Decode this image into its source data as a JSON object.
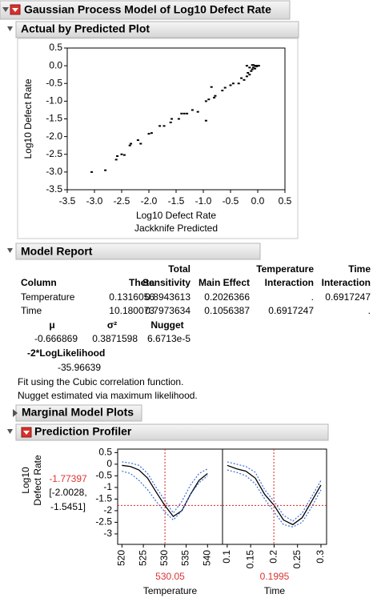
{
  "report_title": "Gaussian Process Model of Log10 Defect Rate",
  "chart_data": [
    {
      "type": "scatter",
      "title": "Actual by Predicted Plot",
      "xlabel": "Log10 Defect Rate",
      "xlabel2": "Jackknife Predicted",
      "ylabel": "Log10 Defect Rate",
      "color": "#000000",
      "xlim": [
        -3.5,
        0.5
      ],
      "ylim": [
        -3.5,
        0.5
      ],
      "xticks": [
        -3.5,
        {
          "value": -3,
          "label": "-3.0"
        },
        -2.5,
        {
          "value": -2,
          "label": "-2.0"
        },
        -1.5,
        {
          "value": -1,
          "label": "-1.0"
        },
        -0.5,
        {
          "value": 0,
          "label": "0.0"
        },
        0.5
      ],
      "yticks": [
        -3.5,
        {
          "value": -3,
          "label": "-3.0"
        },
        -2.5,
        {
          "value": -2,
          "label": "-2.0"
        },
        -1.5,
        {
          "value": -1,
          "label": "-1.0"
        },
        -0.5,
        {
          "value": 0,
          "label": "0.0"
        },
        0.5
      ],
      "x": [
        -3.05,
        -2.8,
        -2.6,
        -2.58,
        -2.5,
        -2.45,
        -2.35,
        -2.33,
        -2.2,
        -2.15,
        -2.0,
        -1.95,
        -1.8,
        -1.72,
        -1.6,
        -1.58,
        -1.45,
        -1.4,
        -1.35,
        -1.3,
        -1.2,
        -1.1,
        -0.95,
        -0.95,
        -0.9,
        -0.8,
        -0.78,
        -0.85,
        -0.65,
        -0.6,
        -0.5,
        -0.45,
        -0.35,
        -0.3,
        -0.25,
        -0.2,
        -0.18,
        -0.15,
        -0.12,
        -0.1,
        -0.1,
        -0.08,
        -0.05,
        -0.05,
        -0.03,
        -0.02,
        0.0,
        0.02,
        -0.2,
        -0.15,
        -0.08
      ],
      "values": [
        -3.0,
        -2.95,
        -2.65,
        -2.55,
        -2.5,
        -2.52,
        -2.25,
        -2.2,
        -2.1,
        -2.2,
        -1.92,
        -1.9,
        -1.7,
        -1.7,
        -1.6,
        -1.5,
        -1.5,
        -1.35,
        -1.35,
        -1.35,
        -1.25,
        -1.3,
        -1.55,
        -1.0,
        -0.95,
        -0.9,
        -0.85,
        -0.6,
        -0.7,
        -0.62,
        -0.55,
        -0.5,
        -0.5,
        -0.35,
        -0.4,
        -0.3,
        -0.2,
        -0.25,
        -0.15,
        -0.1,
        0.02,
        -0.05,
        0.0,
        -0.08,
        0.0,
        -0.02,
        0.0,
        0.0,
        0.0,
        -0.05,
        0.02
      ]
    },
    {
      "type": "line",
      "xlabel": "Temperature",
      "x_current": 530.05,
      "xlim": [
        519,
        543.5
      ],
      "ylim": [
        -3.45,
        0.65
      ],
      "xticks": [
        520,
        525,
        530,
        535,
        540
      ],
      "yticks": [
        0.5,
        0,
        -0.5,
        -1,
        -1.5,
        -2,
        -2.5,
        -3
      ],
      "x": [
        520,
        522,
        524,
        526,
        528,
        530,
        532,
        534,
        536,
        538,
        540
      ],
      "series": [
        {
          "color": "#000000",
          "style": "solid",
          "values": [
            -0.05,
            -0.1,
            -0.25,
            -0.6,
            -1.2,
            -1.77,
            -2.25,
            -2.0,
            -1.3,
            -0.7,
            -0.4
          ]
        },
        {
          "color": "#3b6fd8",
          "style": "dotted",
          "values": [
            0.1,
            0.05,
            -0.05,
            -0.4,
            -1.0,
            -1.55,
            -2.1,
            -1.6,
            -0.9,
            -0.4,
            -0.2
          ]
        },
        {
          "color": "#3b6fd8",
          "style": "dotted",
          "values": [
            -0.3,
            -0.4,
            -0.7,
            -1.1,
            -1.6,
            -2.05,
            -2.4,
            -2.0,
            -1.3,
            -0.8,
            -0.5
          ]
        }
      ]
    },
    {
      "type": "line",
      "xlabel": "Time",
      "x_current": 0.1995,
      "xlim": [
        0.09,
        0.312
      ],
      "ylim": [
        -3.45,
        0.65
      ],
      "xticks": [
        0.1,
        0.15,
        0.2,
        0.25,
        0.3
      ],
      "yticks": [
        0.5,
        0,
        -0.5,
        -1,
        -1.5,
        -2,
        -2.5,
        -3
      ],
      "x": [
        0.1,
        0.12,
        0.14,
        0.16,
        0.18,
        0.2,
        0.22,
        0.24,
        0.26,
        0.28,
        0.3
      ],
      "series": [
        {
          "color": "#000000",
          "style": "solid",
          "values": [
            -0.05,
            -0.2,
            -0.3,
            -0.6,
            -1.3,
            -1.77,
            -2.4,
            -2.6,
            -2.3,
            -1.6,
            -0.9
          ]
        },
        {
          "color": "#3b6fd8",
          "style": "dotted",
          "values": [
            0.1,
            0.0,
            -0.1,
            -0.35,
            -1.1,
            -1.6,
            -2.2,
            -2.45,
            -2.1,
            -1.4,
            -0.7
          ]
        },
        {
          "color": "#3b6fd8",
          "style": "dotted",
          "values": [
            -0.25,
            -0.35,
            -0.5,
            -0.85,
            -1.5,
            -2.05,
            -2.6,
            -2.7,
            -2.5,
            -1.85,
            -1.1
          ]
        }
      ]
    }
  ],
  "model_report": {
    "heading": "Model Report",
    "columns": [
      [
        "Column"
      ],
      [
        "Theta"
      ],
      [
        "Total",
        "Sensitivity"
      ],
      [
        "Main Effect"
      ],
      [
        "Temperature",
        "Interaction"
      ],
      [
        "Time",
        "Interaction"
      ]
    ],
    "rows": [
      [
        "Temperature",
        0.1316056,
        0.8943613,
        0.2026366,
        ".",
        0.6917247
      ],
      [
        "Time",
        10.180073,
        0.7973634,
        0.1056387,
        0.6917247,
        "."
      ]
    ],
    "param_columns": [
      "μ",
      "σ²",
      "Nugget"
    ],
    "param_values": [
      -0.666869,
      0.3871598,
      "6.6713e-5"
    ],
    "loglik_label": "-2*LogLikelihood",
    "loglik_value": -35.96639,
    "notes": [
      "Fit using the Cubic correlation function.",
      "Nugget estimated via maximum likelihood."
    ]
  },
  "marginal_model_plots": "Marginal Model Plots",
  "prediction_profiler": {
    "heading": "Prediction Profiler",
    "ylabel": [
      "Log10",
      "Defect Rate"
    ],
    "y_current": -1.77397,
    "ci_lines": [
      "[-2.0028,",
      "-1.5451]"
    ]
  }
}
